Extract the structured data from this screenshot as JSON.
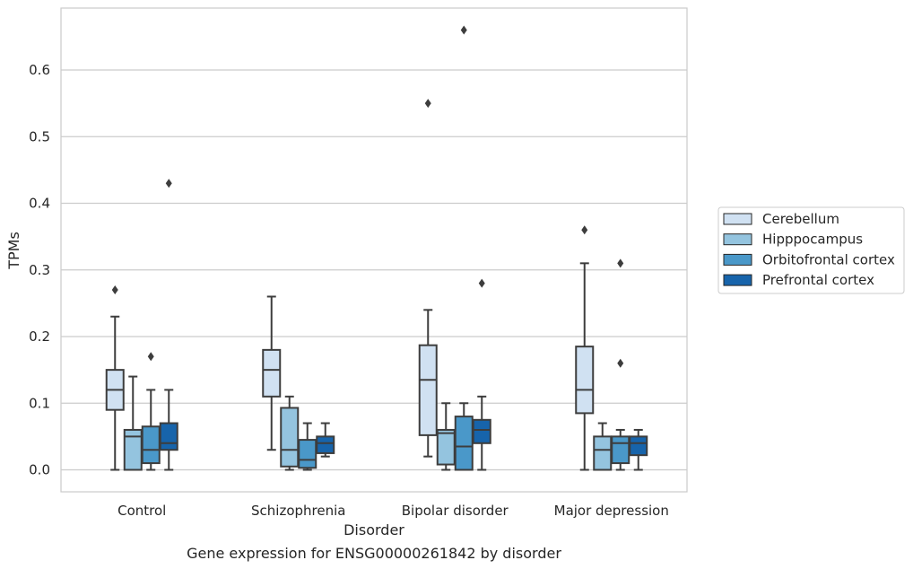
{
  "chart_data": {
    "type": "box",
    "title": "",
    "caption": "Gene expression for ENSG00000261842 by disorder",
    "xlabel": "Disorder",
    "ylabel": "TPMs",
    "ylim": [
      -0.033,
      0.693
    ],
    "y_ticks": [
      "0.0",
      "0.1",
      "0.2",
      "0.3",
      "0.4",
      "0.5",
      "0.6"
    ],
    "grid": "horizontal",
    "legend_position": "right-outside",
    "categories": [
      "Control",
      "Schizophrenia",
      "Bipolar disorder",
      "Major depression"
    ],
    "series": [
      {
        "name": "Cerebellum",
        "color": "#d0e1f2",
        "boxes": [
          {
            "whislo": 0.0,
            "q1": 0.09,
            "med": 0.12,
            "q3": 0.15,
            "whishi": 0.23,
            "fliers": [
              0.27
            ]
          },
          {
            "whislo": 0.03,
            "q1": 0.11,
            "med": 0.15,
            "q3": 0.18,
            "whishi": 0.26,
            "fliers": []
          },
          {
            "whislo": 0.02,
            "q1": 0.052,
            "med": 0.135,
            "q3": 0.187,
            "whishi": 0.24,
            "fliers": [
              0.55
            ]
          },
          {
            "whislo": 0.0,
            "q1": 0.085,
            "med": 0.12,
            "q3": 0.185,
            "whishi": 0.31,
            "fliers": [
              0.36
            ]
          }
        ]
      },
      {
        "name": "Hipppocampus",
        "color": "#94c4df",
        "boxes": [
          {
            "whislo": 0.0,
            "q1": 0.0,
            "med": 0.05,
            "q3": 0.06,
            "whishi": 0.14,
            "fliers": []
          },
          {
            "whislo": 0.0,
            "q1": 0.005,
            "med": 0.03,
            "q3": 0.093,
            "whishi": 0.11,
            "fliers": []
          },
          {
            "whislo": 0.0,
            "q1": 0.008,
            "med": 0.055,
            "q3": 0.06,
            "whishi": 0.1,
            "fliers": []
          },
          {
            "whislo": 0.0,
            "q1": 0.0,
            "med": 0.03,
            "q3": 0.05,
            "whishi": 0.07,
            "fliers": []
          }
        ]
      },
      {
        "name": "Orbitofrontal cortex",
        "color": "#4a98c9",
        "boxes": [
          {
            "whislo": 0.0,
            "q1": 0.01,
            "med": 0.03,
            "q3": 0.065,
            "whishi": 0.12,
            "fliers": [
              0.17
            ]
          },
          {
            "whislo": 0.0,
            "q1": 0.003,
            "med": 0.015,
            "q3": 0.045,
            "whishi": 0.07,
            "fliers": []
          },
          {
            "whislo": 0.0,
            "q1": 0.0,
            "med": 0.035,
            "q3": 0.08,
            "whishi": 0.1,
            "fliers": [
              0.66
            ]
          },
          {
            "whislo": 0.0,
            "q1": 0.01,
            "med": 0.04,
            "q3": 0.05,
            "whishi": 0.06,
            "fliers": [
              0.16,
              0.31
            ]
          }
        ]
      },
      {
        "name": "Prefrontal cortex",
        "color": "#1764ab",
        "boxes": [
          {
            "whislo": 0.0,
            "q1": 0.03,
            "med": 0.04,
            "q3": 0.07,
            "whishi": 0.12,
            "fliers": [
              0.43
            ]
          },
          {
            "whislo": 0.02,
            "q1": 0.025,
            "med": 0.04,
            "q3": 0.05,
            "whishi": 0.07,
            "fliers": []
          },
          {
            "whislo": 0.0,
            "q1": 0.04,
            "med": 0.06,
            "q3": 0.075,
            "whishi": 0.11,
            "fliers": [
              0.28
            ]
          },
          {
            "whislo": 0.0,
            "q1": 0.022,
            "med": 0.04,
            "q3": 0.05,
            "whishi": 0.06,
            "fliers": []
          }
        ]
      }
    ]
  }
}
